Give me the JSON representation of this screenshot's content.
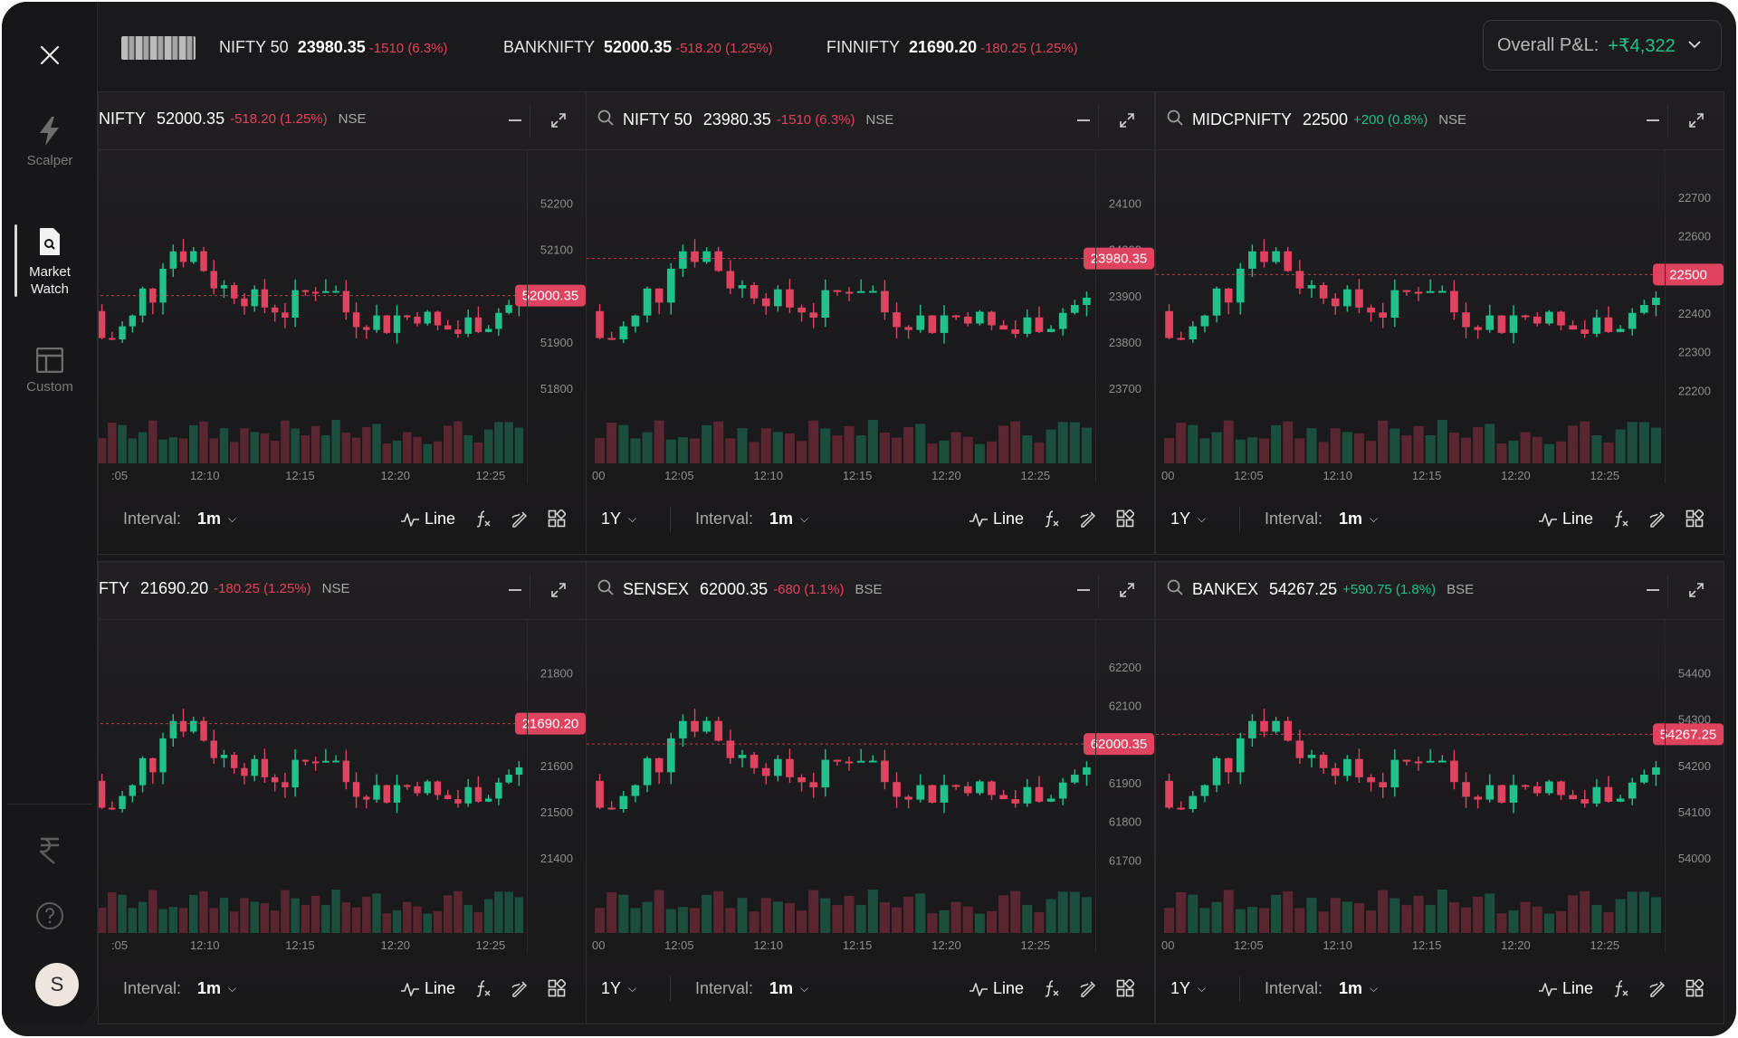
{
  "ticker": [
    {
      "name": "NIFTY 50",
      "value": "23980.35",
      "change": "-1510 (6.3%)"
    },
    {
      "name": "BANKNIFTY",
      "value": "52000.35",
      "change": "-518.20 (1.25%)"
    },
    {
      "name": "FINNIFTY",
      "value": "21690.20",
      "change": "-180.25 (1.25%)"
    }
  ],
  "pnl": {
    "label": "Overall P&L:",
    "value": "+₹4,322"
  },
  "rail": {
    "items": [
      {
        "label": "Scalper",
        "icon": "lightning-icon"
      },
      {
        "label": "Market Watch",
        "icon": "document-search-icon",
        "active": true
      },
      {
        "label": "Custom",
        "icon": "layout-icon"
      }
    ],
    "avatar": "S"
  },
  "colors": {
    "up": "#22c08b",
    "down": "#e0435f",
    "background": "#1a191b"
  },
  "footer": {
    "range": "1Y",
    "interval_label": "Interval:",
    "interval_value": "1m",
    "line_label": "Line"
  },
  "panels": [
    {
      "symbol": "NIFTY",
      "price": "52000.35",
      "change": "-518.20 (1.25%)",
      "dir": "neg",
      "exchange": "NSE",
      "show_search": false,
      "show_range": false
    },
    {
      "symbol": "NIFTY 50",
      "price": "23980.35",
      "change": "-1510 (6.3%)",
      "dir": "neg",
      "exchange": "NSE",
      "show_search": true,
      "show_range": true
    },
    {
      "symbol": "MIDCPNIFTY",
      "price": "22500",
      "change": "+200 (0.8%)",
      "dir": "pos",
      "exchange": "NSE",
      "show_search": true,
      "show_range": true
    },
    {
      "symbol": "FTY",
      "price": "21690.20",
      "change": "-180.25 (1.25%)",
      "dir": "neg",
      "exchange": "NSE",
      "show_search": false,
      "show_range": false
    },
    {
      "symbol": "SENSEX",
      "price": "62000.35",
      "change": "-680 (1.1%)",
      "dir": "neg",
      "exchange": "BSE",
      "show_search": true,
      "show_range": true
    },
    {
      "symbol": "BANKEX",
      "price": "54267.25",
      "change": "+590.75 (1.8%)",
      "dir": "pos",
      "exchange": "BSE",
      "show_search": true,
      "show_range": true
    }
  ],
  "chart_data": [
    {
      "type": "candlestick",
      "y_ticks": [
        52200,
        52100,
        52000,
        51900,
        51800
      ],
      "ylim": [
        51775,
        52275
      ],
      "last": 52000.35,
      "last_label": "52000.35",
      "x_ticks": [
        ":05",
        "12:10",
        "12:15",
        "12:20",
        "12:25"
      ]
    },
    {
      "type": "candlestick",
      "y_ticks": [
        24100,
        24000,
        23900,
        23800,
        23700
      ],
      "ylim": [
        23675,
        24175
      ],
      "last": 23980.35,
      "last_label": "23980.35",
      "x_ticks": [
        "00",
        "12:05",
        "12:10",
        "12:15",
        "12:20",
        "12:25"
      ]
    },
    {
      "type": "candlestick",
      "y_ticks": [
        22700,
        22600,
        22500,
        22400,
        22300,
        22200
      ],
      "ylim": [
        22175,
        22775
      ],
      "last": 22500,
      "last_label": "22500",
      "x_ticks": [
        "00",
        "12:05",
        "12:10",
        "12:15",
        "12:20",
        "12:25"
      ]
    },
    {
      "type": "candlestick",
      "y_ticks": [
        21800,
        21700,
        21600,
        21500,
        21400
      ],
      "ylim": [
        21375,
        21875
      ],
      "last": 21690.2,
      "last_label": "21690.20",
      "x_ticks": [
        ":05",
        "12:10",
        "12:15",
        "12:20",
        "12:25"
      ]
    },
    {
      "type": "candlestick",
      "y_ticks": [
        62200,
        62100,
        61900,
        61800,
        61700
      ],
      "ylim": [
        61675,
        62275
      ],
      "last": 62000.35,
      "last_label": "62000.35",
      "x_ticks": [
        "00",
        "12:05",
        "12:10",
        "12:15",
        "12:20",
        "12:25"
      ]
    },
    {
      "type": "candlestick",
      "y_ticks": [
        54400,
        54300,
        54200,
        54100,
        54000
      ],
      "ylim": [
        53975,
        54475
      ],
      "last": 54267.25,
      "last_label": "54267.25",
      "x_ticks": [
        "00",
        "12:05",
        "12:10",
        "12:15",
        "12:20",
        "12:25"
      ]
    }
  ]
}
